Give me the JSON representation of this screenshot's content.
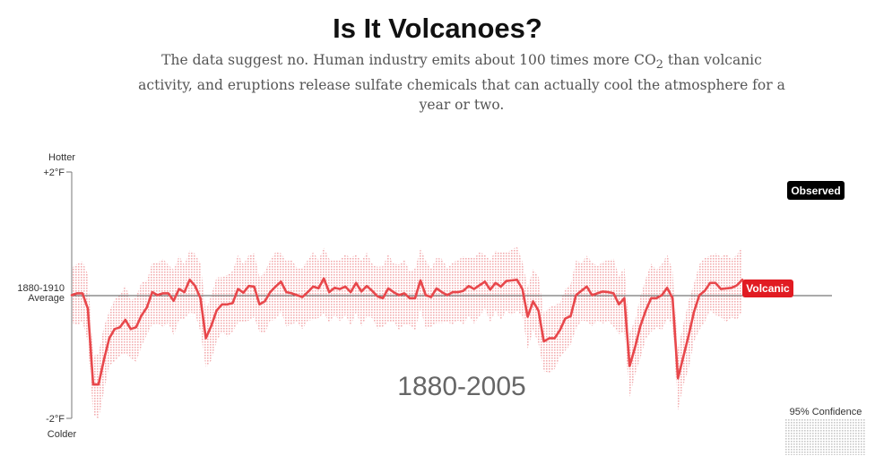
{
  "header": {
    "title": "Is It Volcanoes?",
    "subtitle_before": "The data suggest no. Human industry emits about 100 times more CO",
    "subtitle_sub": "2",
    "subtitle_after": " than volcanic activity, and eruptions release sulfate chemicals that can actually cool the atmosphere for a year or two."
  },
  "chart_data": {
    "type": "line",
    "x_range": [
      1880,
      2005
    ],
    "year_range_label": "1880-2005",
    "y_range": [
      -2,
      2
    ],
    "y_axis": {
      "top_label": "Hotter",
      "bottom_label": "Colder",
      "ticks": [
        {
          "value": 2,
          "label": "+2°F"
        },
        {
          "value": -2,
          "label": "-2°F"
        }
      ],
      "baseline_label_line1": "1880-1910",
      "baseline_label_line2": "Average"
    },
    "legend": {
      "observed": "Observed",
      "volcanic": "Volcanic",
      "confidence": "95% Confidence"
    },
    "colors": {
      "volcanic_line": "#e8474b",
      "confidence_band": "#f2aeb0",
      "volcanic_badge": "#e11b22",
      "observed_badge": "#000000",
      "baseline": "#555555"
    },
    "series": [
      {
        "name": "Volcanic",
        "confidence_halfwidth": 0.5,
        "x": [
          1880,
          1881,
          1882,
          1883,
          1884,
          1885,
          1886,
          1887,
          1888,
          1889,
          1890,
          1891,
          1892,
          1893,
          1894,
          1895,
          1896,
          1897,
          1898,
          1899,
          1900,
          1901,
          1902,
          1903,
          1904,
          1905,
          1906,
          1907,
          1908,
          1909,
          1910,
          1911,
          1912,
          1913,
          1914,
          1915,
          1916,
          1917,
          1918,
          1919,
          1920,
          1921,
          1922,
          1923,
          1924,
          1925,
          1926,
          1927,
          1928,
          1929,
          1930,
          1931,
          1932,
          1933,
          1934,
          1935,
          1936,
          1937,
          1938,
          1939,
          1940,
          1941,
          1942,
          1943,
          1944,
          1945,
          1946,
          1947,
          1948,
          1949,
          1950,
          1951,
          1952,
          1953,
          1954,
          1955,
          1956,
          1957,
          1958,
          1959,
          1960,
          1961,
          1962,
          1963,
          1964,
          1965,
          1966,
          1967,
          1968,
          1969,
          1970,
          1971,
          1972,
          1973,
          1974,
          1975,
          1976,
          1977,
          1978,
          1979,
          1980,
          1981,
          1982,
          1983,
          1984,
          1985,
          1986,
          1987,
          1988,
          1989,
          1990,
          1991,
          1992,
          1993,
          1994,
          1995,
          1996,
          1997,
          1998,
          1999,
          2000,
          2001,
          2002,
          2003,
          2004,
          2005
        ],
        "y": [
          0.0,
          0.03,
          0.03,
          -0.22,
          -1.45,
          -1.45,
          -1.05,
          -0.7,
          -0.55,
          -0.52,
          -0.4,
          -0.55,
          -0.52,
          -0.33,
          -0.2,
          0.05,
          0.0,
          0.03,
          0.03,
          -0.09,
          0.1,
          0.05,
          0.25,
          0.15,
          -0.05,
          -0.7,
          -0.5,
          -0.25,
          -0.15,
          -0.15,
          -0.13,
          0.1,
          0.04,
          0.15,
          0.14,
          -0.15,
          -0.1,
          0.05,
          0.14,
          0.22,
          0.05,
          0.03,
          0.0,
          -0.03,
          0.05,
          0.14,
          0.11,
          0.27,
          0.05,
          0.12,
          0.1,
          0.14,
          0.05,
          0.2,
          0.06,
          0.15,
          0.07,
          -0.02,
          -0.05,
          0.11,
          0.05,
          0.0,
          0.03,
          -0.05,
          -0.05,
          0.24,
          0.0,
          -0.03,
          0.11,
          0.05,
          0.0,
          0.05,
          0.05,
          0.07,
          0.15,
          0.1,
          0.16,
          0.22,
          0.09,
          0.2,
          0.14,
          0.23,
          0.24,
          0.25,
          0.1,
          -0.35,
          -0.1,
          -0.25,
          -0.75,
          -0.7,
          -0.7,
          -0.57,
          -0.38,
          -0.34,
          0.0,
          0.07,
          0.14,
          0.0,
          0.03,
          0.06,
          0.05,
          0.03,
          -0.15,
          -0.05,
          -1.15,
          -0.85,
          -0.5,
          -0.25,
          -0.05,
          -0.05,
          0.0,
          0.12,
          -0.05,
          -1.35,
          -1.0,
          -0.65,
          -0.27,
          0.0,
          0.07,
          0.2,
          0.2,
          0.1,
          0.11,
          0.12,
          0.16,
          0.25
        ]
      }
    ]
  }
}
